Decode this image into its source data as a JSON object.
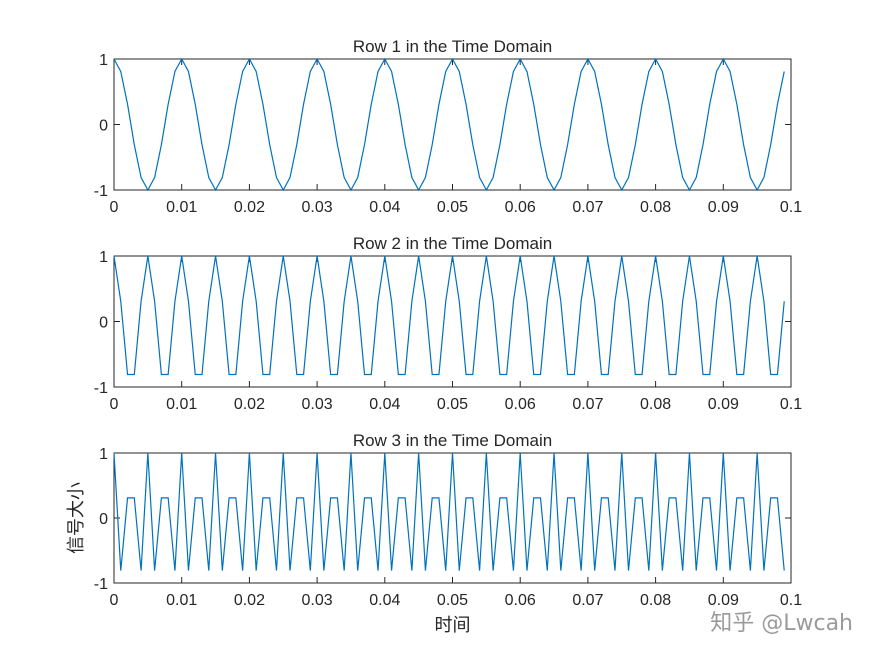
{
  "chart_data": [
    {
      "type": "line",
      "title": "Row 1 in the Time Domain",
      "xlabel": "",
      "ylabel": "",
      "xlim": [
        0,
        0.1
      ],
      "ylim": [
        -1,
        1
      ],
      "xticks": [
        "0",
        "0.01",
        "0.02",
        "0.03",
        "0.04",
        "0.05",
        "0.06",
        "0.07",
        "0.08",
        "0.09",
        "0.1"
      ],
      "yticks": [
        "-1",
        "0",
        "1"
      ],
      "series": [
        {
          "sample_rate_hz": 1000,
          "n_samples": 100,
          "x_start": 0,
          "x_end": 0.099,
          "formula": "cos(2*pi*100*t)",
          "values": [
            1,
            0.809,
            0.309,
            -0.309,
            -0.809,
            -1,
            -0.809,
            -0.309,
            0.309,
            0.809
          ]
        }
      ],
      "color": "#0072BD",
      "grid": false
    },
    {
      "type": "line",
      "title": "Row 2 in the Time Domain",
      "xlabel": "",
      "ylabel": "",
      "xlim": [
        0,
        0.1
      ],
      "ylim": [
        -1,
        1
      ],
      "xticks": [
        "0",
        "0.01",
        "0.02",
        "0.03",
        "0.04",
        "0.05",
        "0.06",
        "0.07",
        "0.08",
        "0.09",
        "0.1"
      ],
      "yticks": [
        "-1",
        "0",
        "1"
      ],
      "series": [
        {
          "sample_rate_hz": 1000,
          "n_samples": 100,
          "x_start": 0,
          "x_end": 0.099,
          "formula": "cos(2*pi*200*t)",
          "values": [
            1,
            0.309,
            -0.809,
            -0.809,
            0.309
          ]
        }
      ],
      "color": "#0072BD",
      "grid": false
    },
    {
      "type": "line",
      "title": "Row 3 in the Time Domain",
      "xlabel": "时间",
      "ylabel": "信号大小",
      "xlim": [
        0,
        0.1
      ],
      "ylim": [
        -1,
        1
      ],
      "xticks": [
        "0",
        "0.01",
        "0.02",
        "0.03",
        "0.04",
        "0.05",
        "0.06",
        "0.07",
        "0.08",
        "0.09",
        "0.1"
      ],
      "yticks": [
        "-1",
        "0",
        "1"
      ],
      "series": [
        {
          "sample_rate_hz": 1000,
          "n_samples": 100,
          "x_start": 0,
          "x_end": 0.099,
          "formula": "cos(2*pi*400*t)",
          "values": [
            1,
            -0.809,
            0.309,
            0.309,
            -0.809
          ]
        }
      ],
      "color": "#0072BD",
      "grid": false
    }
  ],
  "watermark": "知乎 @Lwcah"
}
